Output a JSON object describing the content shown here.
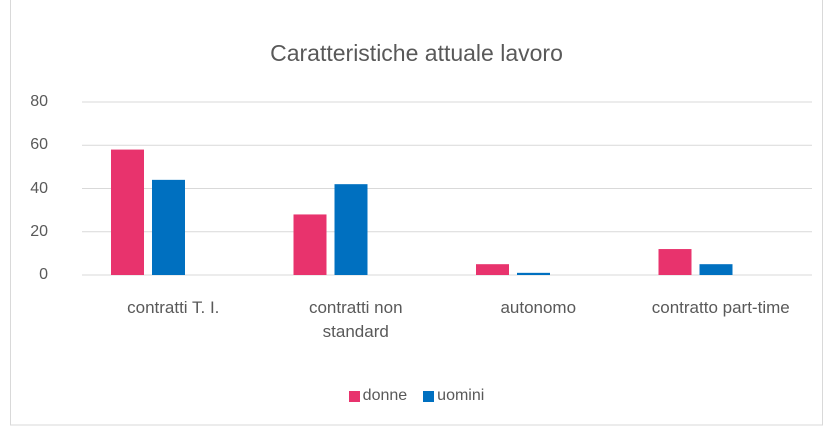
{
  "chart_data": {
    "type": "bar",
    "title": "Caratteristiche attuale lavoro",
    "categories": [
      "contratti T. I.",
      "contratti non standard",
      "autonomo",
      "contratto part-time"
    ],
    "series": [
      {
        "name": "donne",
        "color": "#e8336d",
        "values": [
          58,
          28,
          5,
          12
        ]
      },
      {
        "name": "uomini",
        "color": "#0070c0",
        "values": [
          44,
          42,
          1,
          5
        ]
      }
    ],
    "ylim": [
      0,
      80
    ],
    "yticks": [
      0,
      20,
      40,
      60,
      80
    ],
    "grid": true,
    "legend": "bottom"
  }
}
